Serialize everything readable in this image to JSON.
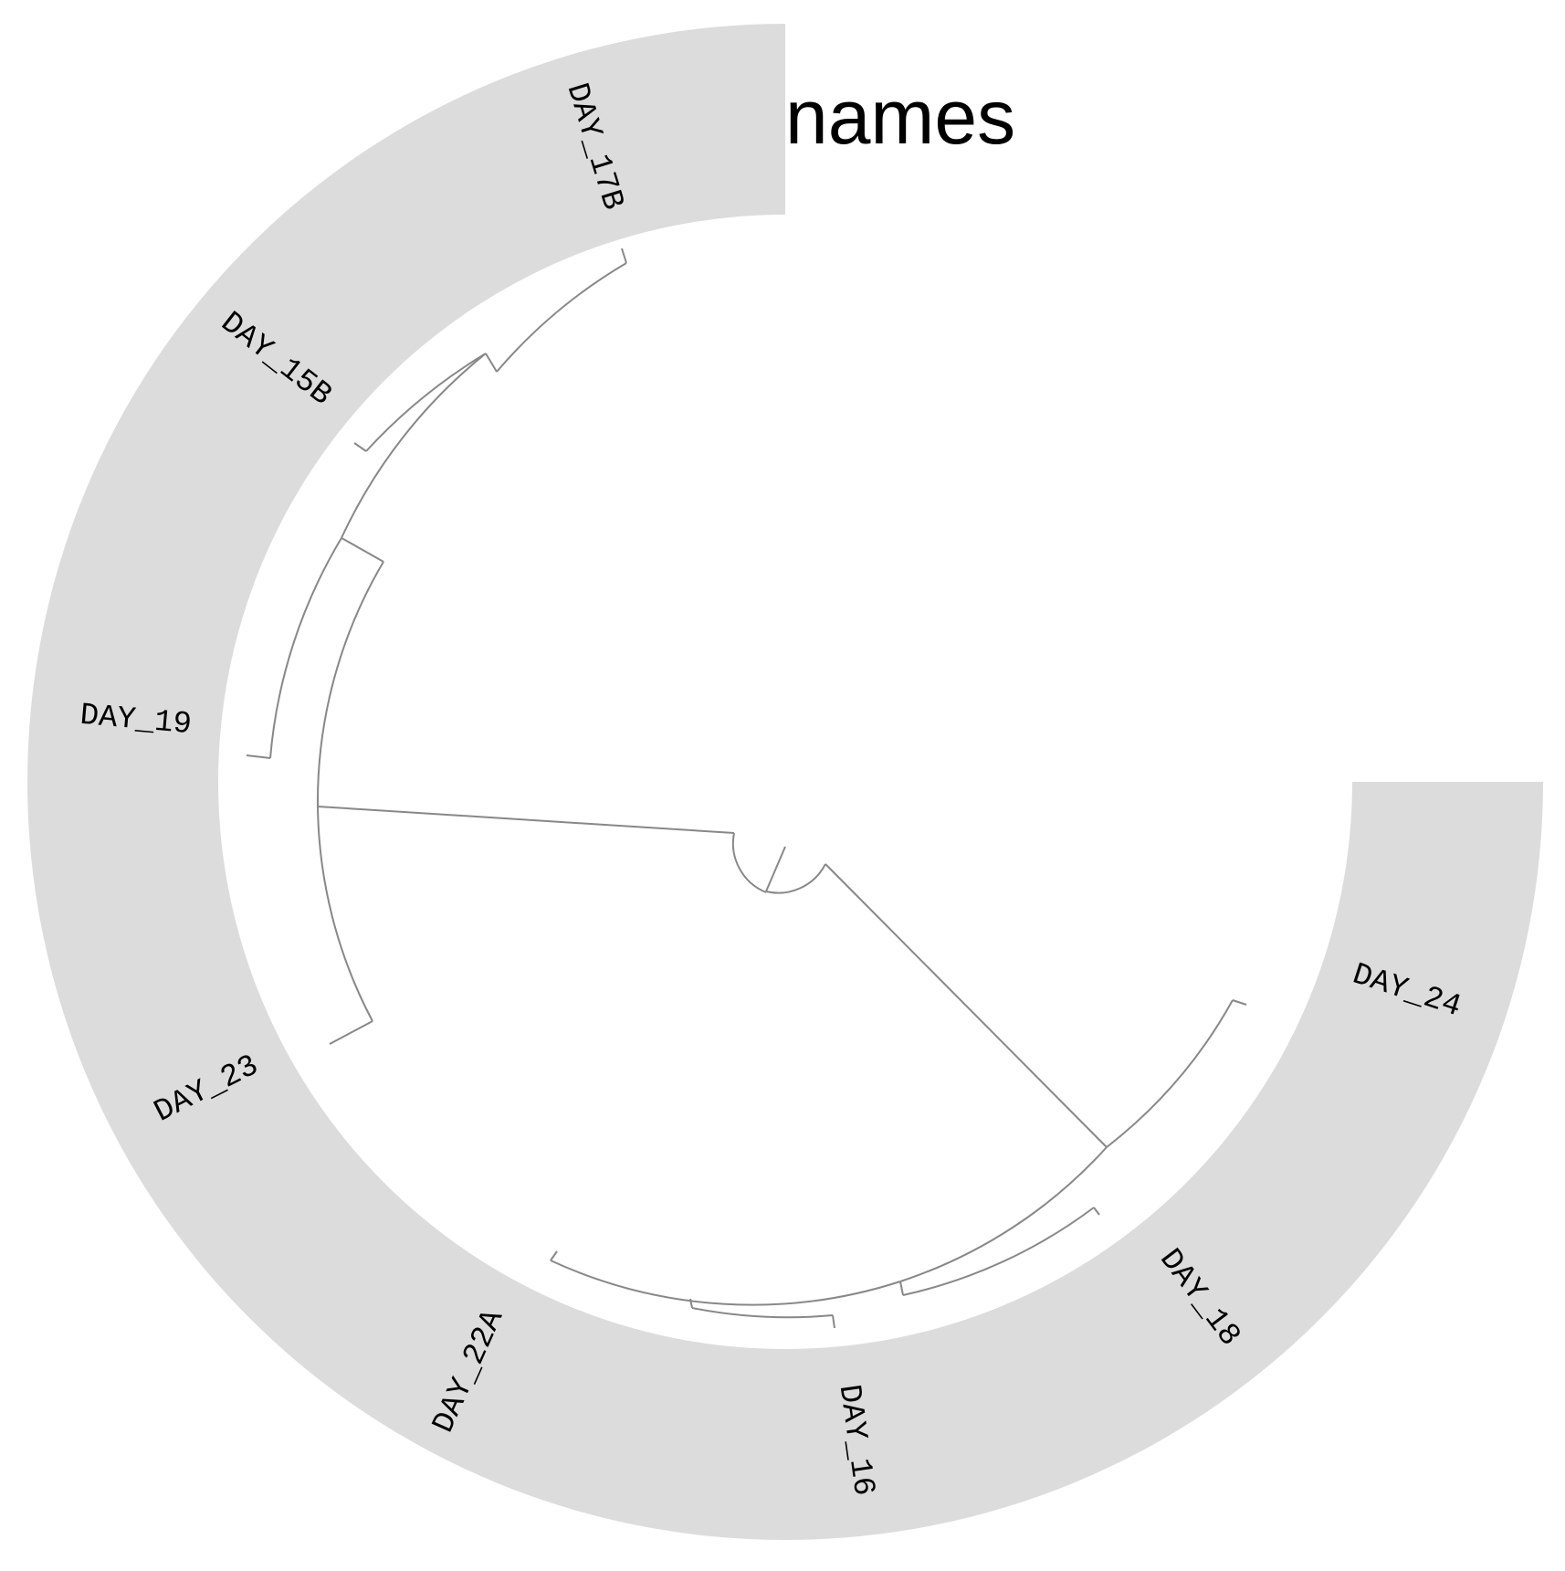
{
  "track": {
    "label": "names",
    "color": "#dcdcdc"
  },
  "tree": {
    "branch_color": "#888888",
    "leaves": [
      {
        "name": "DAY_24"
      },
      {
        "name": "DAY_18"
      },
      {
        "name": "DAY_16"
      },
      {
        "name": "DAY_22A"
      },
      {
        "name": "DAY_23"
      },
      {
        "name": "DAY_19"
      },
      {
        "name": "DAY_15B"
      },
      {
        "name": "DAY_17B"
      }
    ]
  }
}
